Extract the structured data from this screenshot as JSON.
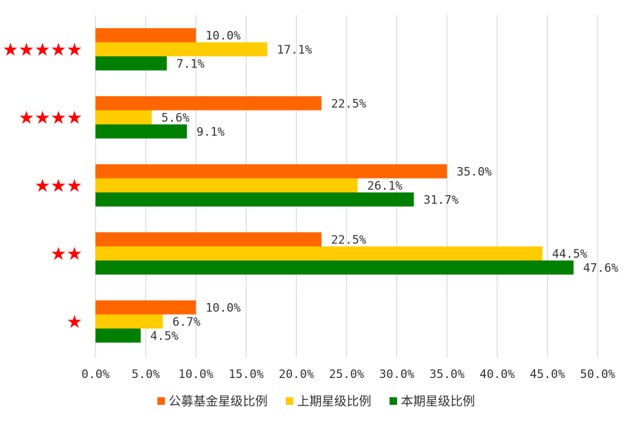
{
  "chart_data": {
    "type": "bar",
    "orientation": "horizontal",
    "categories": [
      "★★★★★",
      "★★★★",
      "★★★",
      "★★",
      "★"
    ],
    "series": [
      {
        "name": "公募基金星级比例",
        "color": "#ff6600",
        "values": [
          10.0,
          22.5,
          35.0,
          22.5,
          10.0
        ],
        "labels": [
          "10.0%",
          "22.5%",
          "35.0%",
          "22.5%",
          "10.0%"
        ]
      },
      {
        "name": "上期星级比例",
        "color": "#ffcc00",
        "values": [
          17.1,
          5.6,
          26.1,
          44.5,
          6.7
        ],
        "labels": [
          "17.1%",
          "5.6%",
          "26.1%",
          "44.5%",
          "6.7%"
        ]
      },
      {
        "name": "本期星级比例",
        "color": "#008000",
        "values": [
          7.1,
          9.1,
          31.7,
          47.6,
          4.5
        ],
        "labels": [
          "7.1%",
          "9.1%",
          "31.7%",
          "47.6%",
          "4.5%"
        ]
      }
    ],
    "xlim": [
      0,
      50
    ],
    "xticks": [
      "0.0%",
      "5.0%",
      "10.0%",
      "15.0%",
      "20.0%",
      "25.0%",
      "30.0%",
      "35.0%",
      "40.0%",
      "45.0%",
      "50.0%"
    ],
    "category_color": "#ff0000",
    "grid": true,
    "legend_position": "bottom"
  }
}
